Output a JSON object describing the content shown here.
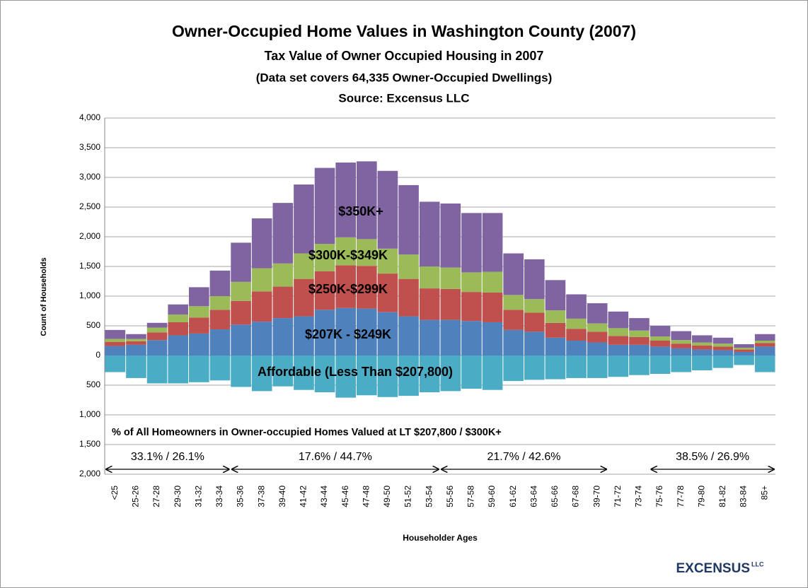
{
  "chart_data": {
    "type": "bar",
    "stacked": true,
    "title": "Owner-Occupied Home Values in Washington County (2007)",
    "subtitle": [
      "Tax Value of Owner Occupied Housing  in 2007",
      "(Data set covers 64,335 Owner-Occupied Dwellings)",
      "Source: Excensus LLC"
    ],
    "x_label": "Householder Ages",
    "y_label": "Count of Households",
    "categories": [
      "<25",
      "25-26",
      "27-28",
      "29-30",
      "31-32",
      "33-34",
      "35-36",
      "37-38",
      "39-40",
      "41-42",
      "43-44",
      "45-46",
      "47-48",
      "49-50",
      "51-52",
      "53-54",
      "55-56",
      "57-58",
      "59-60",
      "61-62",
      "63-64",
      "65-66",
      "67-68",
      "39-70",
      "71-72",
      "73-74",
      "75-76",
      "77-78",
      "79-80",
      "81-82",
      "83-84",
      "85+"
    ],
    "series": [
      {
        "name": "Affordable (Less Than $207,800)",
        "color": "#4bacc6",
        "values": [
          -280,
          -380,
          -470,
          -470,
          -450,
          -420,
          -530,
          -600,
          -520,
          -580,
          -620,
          -710,
          -670,
          -700,
          -680,
          -620,
          -600,
          -560,
          -580,
          -430,
          -410,
          -400,
          -380,
          -380,
          -360,
          -330,
          -310,
          -280,
          -250,
          -210,
          -160,
          -280
        ]
      },
      {
        "name": "$207K - $249K",
        "color": "#4f81bd",
        "values": [
          160,
          180,
          260,
          340,
          370,
          440,
          520,
          570,
          630,
          660,
          770,
          800,
          790,
          730,
          660,
          600,
          600,
          580,
          560,
          430,
          400,
          300,
          250,
          220,
          180,
          180,
          150,
          120,
          100,
          90,
          60,
          150
        ]
      },
      {
        "name": "$250K-$299K",
        "color": "#c0504d",
        "values": [
          70,
          60,
          130,
          220,
          270,
          330,
          400,
          510,
          530,
          630,
          650,
          720,
          720,
          650,
          630,
          530,
          520,
          490,
          500,
          340,
          320,
          250,
          200,
          180,
          150,
          130,
          100,
          80,
          70,
          60,
          40,
          60
        ]
      },
      {
        "name": "$300K-$349K",
        "color": "#9bbb59",
        "values": [
          50,
          40,
          80,
          130,
          190,
          230,
          320,
          390,
          390,
          430,
          460,
          470,
          450,
          420,
          410,
          370,
          360,
          330,
          350,
          250,
          230,
          210,
          170,
          140,
          130,
          110,
          70,
          60,
          50,
          50,
          30,
          40
        ]
      },
      {
        "name": "$350K+",
        "color": "#8064a2",
        "values": [
          150,
          80,
          80,
          170,
          320,
          430,
          660,
          840,
          1020,
          1160,
          1280,
          1260,
          1310,
          1310,
          1170,
          1090,
          1080,
          1000,
          990,
          700,
          670,
          510,
          410,
          340,
          280,
          210,
          180,
          150,
          120,
          100,
          60,
          110
        ]
      }
    ],
    "ylim": [
      -2000,
      4000
    ],
    "yticks": [
      {
        "value": 4000,
        "label": "4,000"
      },
      {
        "value": 3500,
        "label": "3,500"
      },
      {
        "value": 3000,
        "label": "3,000"
      },
      {
        "value": 2500,
        "label": "2,500"
      },
      {
        "value": 2000,
        "label": "2,000"
      },
      {
        "value": 1500,
        "label": "1,500"
      },
      {
        "value": 1000,
        "label": "1,000"
      },
      {
        "value": 500,
        "label": "500"
      },
      0,
      {
        "value": -500,
        "label": "500"
      },
      {
        "value": -1000,
        "label": "1,000"
      },
      {
        "value": -1500,
        "label": "1,500"
      },
      {
        "value": -2000,
        "label": "2,000"
      }
    ],
    "grid": true,
    "annotation": "% of All Homeowners in Owner-occupied Homes Valued at LT $207,800 / $300K+",
    "groups": [
      {
        "label": "33.1% / 26.1%",
        "from": "<25",
        "to": "33-34"
      },
      {
        "label": "17.6% / 44.7%",
        "from": "35-36",
        "to": "53-54"
      },
      {
        "label": "21.7% / 42.6%",
        "from": "55-56",
        "to": "39-70"
      },
      {
        "label": "38.5% / 26.9%",
        "from": "75-76",
        "to": "85+"
      }
    ],
    "logo": "EXCENSUS",
    "logo_suffix": "LLC"
  }
}
